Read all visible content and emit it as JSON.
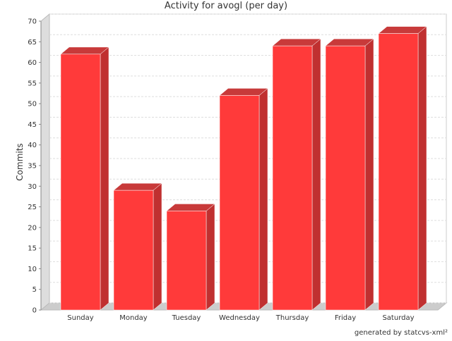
{
  "chart_data": {
    "type": "bar",
    "title": "Activity for avogl (per day)",
    "categories": [
      "Sunday",
      "Monday",
      "Tuesday",
      "Wednesday",
      "Thursday",
      "Friday",
      "Saturday"
    ],
    "values": [
      62,
      29,
      24,
      52,
      64,
      64,
      67
    ],
    "color": "#ff3a3a",
    "y_label": "Commits",
    "ylim": [
      0,
      70
    ],
    "yticks": [
      0,
      5,
      10,
      15,
      20,
      25,
      30,
      35,
      40,
      45,
      50,
      55,
      60,
      65,
      70
    ],
    "grid": true,
    "footer": "generated by statcvs-xml²"
  }
}
